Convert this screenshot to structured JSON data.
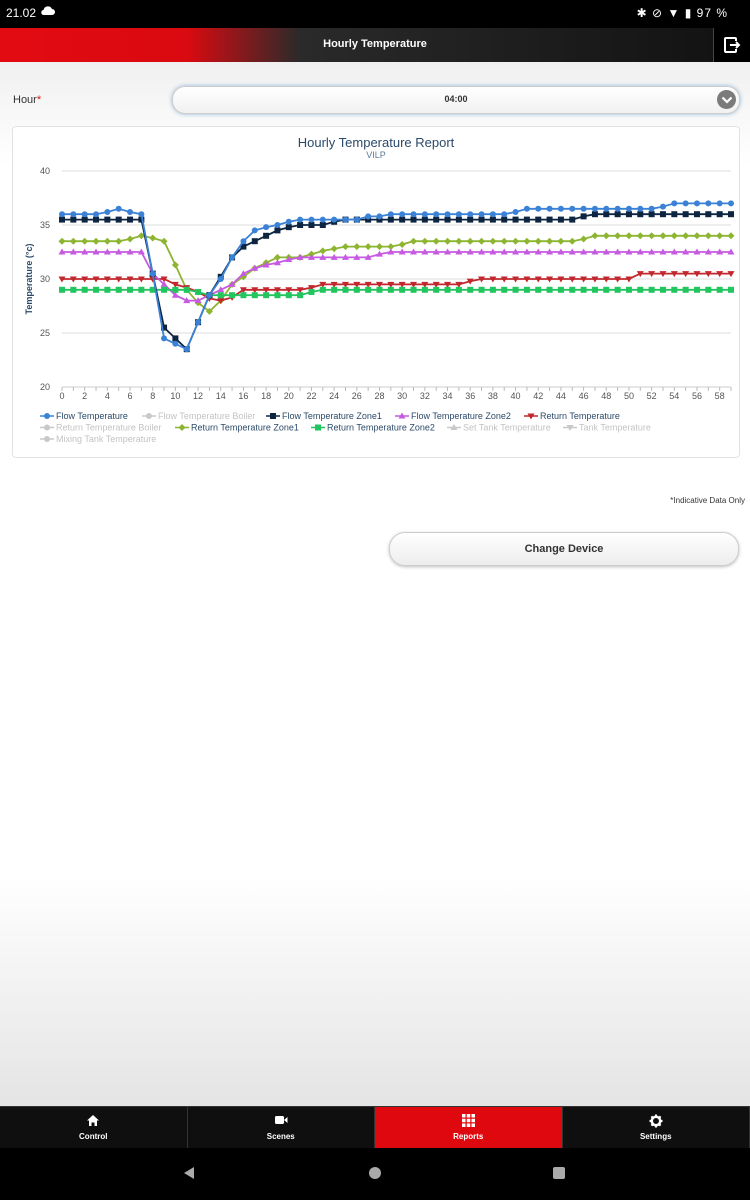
{
  "status_bar": {
    "time": "21.02",
    "battery": "97 %"
  },
  "app_bar": {
    "title": "Hourly Temperature"
  },
  "hour": {
    "label": "Hour",
    "required_mark": "*",
    "value": "04:00"
  },
  "report": {
    "title": "Hourly Temperature Report",
    "subtitle": "VILP"
  },
  "note": "*Indicative Data Only",
  "change_device_label": "Change Device",
  "tabs": [
    {
      "label": "Control",
      "icon": "home-icon"
    },
    {
      "label": "Scenes",
      "icon": "video-camera-icon"
    },
    {
      "label": "Reports",
      "icon": "grid-icon",
      "active": true
    },
    {
      "label": "Settings",
      "icon": "gear-icon"
    }
  ],
  "chart_data": {
    "type": "line",
    "title": "Hourly Temperature Report",
    "subtitle": "VILP",
    "xlabel": "",
    "ylabel": "Temperature (°c)",
    "ylim": [
      20,
      40
    ],
    "xlim": [
      0,
      59
    ],
    "yticks": [
      "20",
      "25",
      "30",
      "35",
      "40"
    ],
    "xticks": [
      "0",
      "2",
      "4",
      "6",
      "8",
      "10",
      "12",
      "14",
      "16",
      "18",
      "20",
      "22",
      "24",
      "26",
      "28",
      "30",
      "32",
      "34",
      "36",
      "38",
      "40",
      "42",
      "44",
      "46",
      "48",
      "50",
      "52",
      "54",
      "56",
      "58"
    ],
    "grid": "horizontal",
    "legend_position": "bottom-left",
    "series": [
      {
        "name": "Flow Temperature",
        "color": "#3b82d6",
        "marker": "circle",
        "visible": true,
        "values": [
          36,
          36,
          36,
          36,
          36.2,
          36.5,
          36.2,
          36,
          30.5,
          24.5,
          24,
          23.5,
          26,
          28.5,
          30,
          32,
          33.5,
          34.5,
          34.8,
          35,
          35.3,
          35.5,
          35.5,
          35.5,
          35.5,
          35.5,
          35.5,
          35.8,
          35.8,
          36,
          36,
          36,
          36,
          36,
          36,
          36,
          36,
          36,
          36,
          36,
          36.2,
          36.5,
          36.5,
          36.5,
          36.5,
          36.5,
          36.5,
          36.5,
          36.5,
          36.5,
          36.5,
          36.5,
          36.5,
          36.7,
          37,
          37,
          37,
          37,
          37,
          37
        ]
      },
      {
        "name": "Flow Temperature Boiler",
        "color": "#c8c8c8",
        "marker": "circle",
        "visible": false,
        "values": []
      },
      {
        "name": "Flow Temperature Zone1",
        "color": "#0d2540",
        "marker": "square",
        "visible": true,
        "values": [
          35.5,
          35.5,
          35.5,
          35.5,
          35.5,
          35.5,
          35.5,
          35.5,
          30.5,
          25.5,
          24.5,
          23.5,
          26,
          28.5,
          30.2,
          32,
          33,
          33.5,
          34,
          34.5,
          34.8,
          35,
          35,
          35,
          35.3,
          35.5,
          35.5,
          35.5,
          35.5,
          35.5,
          35.5,
          35.5,
          35.5,
          35.5,
          35.5,
          35.5,
          35.5,
          35.5,
          35.5,
          35.5,
          35.5,
          35.5,
          35.5,
          35.5,
          35.5,
          35.5,
          35.8,
          36,
          36,
          36,
          36,
          36,
          36,
          36,
          36,
          36,
          36,
          36,
          36,
          36
        ]
      },
      {
        "name": "Flow Temperature Zone2",
        "color": "#c65ae0",
        "marker": "triangle",
        "visible": true,
        "values": [
          32.5,
          32.5,
          32.5,
          32.5,
          32.5,
          32.5,
          32.5,
          32.5,
          30.5,
          29.5,
          28.5,
          28,
          28,
          28.5,
          29,
          29.5,
          30.5,
          31,
          31.3,
          31.5,
          31.8,
          32,
          32,
          32,
          32,
          32,
          32,
          32,
          32.3,
          32.5,
          32.5,
          32.5,
          32.5,
          32.5,
          32.5,
          32.5,
          32.5,
          32.5,
          32.5,
          32.5,
          32.5,
          32.5,
          32.5,
          32.5,
          32.5,
          32.5,
          32.5,
          32.5,
          32.5,
          32.5,
          32.5,
          32.5,
          32.5,
          32.5,
          32.5,
          32.5,
          32.5,
          32.5,
          32.5,
          32.5
        ]
      },
      {
        "name": "Return Temperature",
        "color": "#c1272d",
        "marker": "triangle-down",
        "visible": true,
        "values": [
          30,
          30,
          30,
          30,
          30,
          30,
          30,
          30,
          30,
          30,
          29.5,
          29.2,
          28.8,
          28.2,
          28,
          28.3,
          29,
          29,
          29,
          29,
          29,
          29,
          29.2,
          29.5,
          29.5,
          29.5,
          29.5,
          29.5,
          29.5,
          29.5,
          29.5,
          29.5,
          29.5,
          29.5,
          29.5,
          29.5,
          29.8,
          30,
          30,
          30,
          30,
          30,
          30,
          30,
          30,
          30,
          30,
          30,
          30,
          30,
          30,
          30.5,
          30.5,
          30.5,
          30.5,
          30.5,
          30.5,
          30.5,
          30.5,
          30.5
        ]
      },
      {
        "name": "Return Temperature Boiler",
        "color": "#c8c8c8",
        "marker": "circle",
        "visible": false,
        "values": []
      },
      {
        "name": "Return Temperature Zone1",
        "color": "#8db531",
        "marker": "diamond",
        "visible": true,
        "values": [
          33.5,
          33.5,
          33.5,
          33.5,
          33.5,
          33.5,
          33.7,
          34,
          33.8,
          33.5,
          31.3,
          29,
          27.8,
          27,
          28,
          29.5,
          30.2,
          31,
          31.5,
          32,
          32,
          32,
          32.3,
          32.6,
          32.8,
          33,
          33,
          33,
          33,
          33,
          33.2,
          33.5,
          33.5,
          33.5,
          33.5,
          33.5,
          33.5,
          33.5,
          33.5,
          33.5,
          33.5,
          33.5,
          33.5,
          33.5,
          33.5,
          33.5,
          33.7,
          34,
          34,
          34,
          34,
          34,
          34,
          34,
          34,
          34,
          34,
          34,
          34,
          34
        ]
      },
      {
        "name": "Return Temperature Zone2",
        "color": "#22c55e",
        "marker": "square",
        "visible": true,
        "values": [
          29,
          29,
          29,
          29,
          29,
          29,
          29,
          29,
          29,
          29,
          29,
          29,
          28.8,
          28.5,
          28.5,
          28.5,
          28.5,
          28.5,
          28.5,
          28.5,
          28.5,
          28.5,
          28.8,
          29,
          29,
          29,
          29,
          29,
          29,
          29,
          29,
          29,
          29,
          29,
          29,
          29,
          29,
          29,
          29,
          29,
          29,
          29,
          29,
          29,
          29,
          29,
          29,
          29,
          29,
          29,
          29,
          29,
          29,
          29,
          29,
          29,
          29,
          29,
          29,
          29
        ]
      },
      {
        "name": "Set Tank Temperature",
        "color": "#c8c8c8",
        "marker": "triangle",
        "visible": false,
        "values": []
      },
      {
        "name": "Tank Temperature",
        "color": "#c8c8c8",
        "marker": "triangle-down",
        "visible": false,
        "values": []
      },
      {
        "name": "Mixing Tank Temperature",
        "color": "#c8c8c8",
        "marker": "circle",
        "visible": false,
        "values": []
      }
    ]
  }
}
